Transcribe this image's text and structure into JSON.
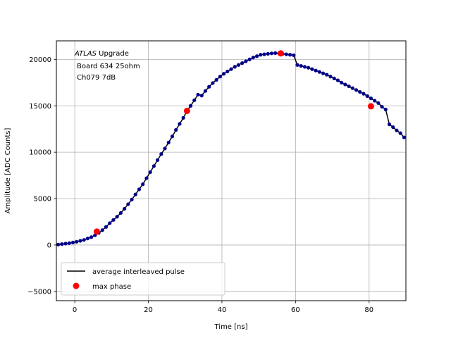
{
  "chart_data": {
    "type": "line",
    "xlabel": "Time [ns]",
    "ylabel": "Amplitude [ADC Counts]",
    "xlim": [
      -5,
      90
    ],
    "ylim": [
      -6000,
      22000
    ],
    "xticks": [
      0,
      20,
      40,
      60,
      80
    ],
    "yticks": [
      -5000,
      0,
      5000,
      10000,
      15000,
      20000
    ],
    "grid": true,
    "legend_position": "lower-left",
    "annotation": {
      "line1_italic": "ATLAS",
      "line1_rest": " Upgrade",
      "line2": "Board 634 25ohm",
      "line3": "Ch079 7dB"
    },
    "colors": {
      "line": "#000000",
      "markers": "#00008b",
      "max_phase": "#ff0000"
    },
    "series": [
      {
        "name": "average interleaved pulse",
        "style": "line-with-dots",
        "x": [
          -4.5,
          -3.5,
          -2.5,
          -1.5,
          -0.5,
          0.5,
          1.5,
          2.5,
          3.5,
          4.5,
          5.5,
          6.5,
          7.5,
          8.5,
          9.5,
          10.5,
          11.5,
          12.5,
          13.5,
          14.5,
          15.5,
          16.5,
          17.5,
          18.5,
          19.5,
          20.5,
          21.5,
          22.5,
          23.5,
          24.5,
          25.5,
          26.5,
          27.5,
          28.5,
          29.5,
          30.5,
          31.5,
          32.5,
          33.5,
          34.5,
          35.5,
          36.5,
          37.5,
          38.5,
          39.5,
          40.5,
          41.5,
          42.5,
          43.5,
          44.5,
          45.5,
          46.5,
          47.5,
          48.5,
          49.5,
          50.5,
          51.5,
          52.5,
          53.5,
          54.5,
          55.5,
          56.5,
          57.5,
          58.5,
          59.5,
          60.5,
          61.5,
          62.5,
          63.5,
          64.5,
          65.5,
          66.5,
          67.5,
          68.5,
          69.5,
          70.5,
          71.5,
          72.5,
          73.5,
          74.5,
          75.5,
          76.5,
          77.5,
          78.5,
          79.5,
          80.5,
          81.5,
          82.5,
          83.5,
          84.5,
          85.5,
          86.5,
          87.5,
          88.5,
          89.5
        ],
        "y": [
          50,
          100,
          150,
          200,
          270,
          350,
          450,
          550,
          700,
          850,
          1050,
          1300,
          1600,
          1950,
          2350,
          2700,
          3050,
          3450,
          3900,
          4400,
          4900,
          5450,
          6000,
          6550,
          7200,
          7850,
          8500,
          9150,
          9800,
          10400,
          11050,
          11700,
          12400,
          13050,
          13700,
          14450,
          15000,
          15600,
          16200,
          16100,
          16600,
          17050,
          17450,
          17800,
          18150,
          18450,
          18700,
          18950,
          19200,
          19400,
          19600,
          19800,
          20000,
          20200,
          20350,
          20500,
          20550,
          20600,
          20650,
          20680,
          20650,
          20600,
          20550,
          20500,
          20450,
          19400,
          19300,
          19200,
          19100,
          18950,
          18800,
          18650,
          18500,
          18350,
          18150,
          17950,
          17750,
          17500,
          17300,
          17100,
          16900,
          16700,
          16500,
          16300,
          16050,
          15800,
          15550,
          15300,
          14900,
          14600,
          13000,
          12700,
          12350,
          12050,
          11600
        ]
      },
      {
        "name": "max phase",
        "style": "markers",
        "x": [
          6,
          30.5,
          56,
          80.5
        ],
        "y": [
          1450,
          14450,
          20650,
          14950
        ]
      }
    ]
  }
}
